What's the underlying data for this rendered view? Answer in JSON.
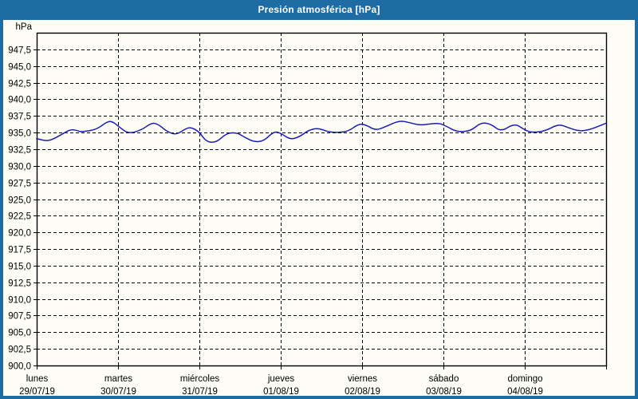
{
  "window": {
    "title": "Presión atmosférica [hPa]"
  },
  "colors": {
    "titlebar": "#1e6ca3",
    "frame": "#000000",
    "gridline": "#000000",
    "line": "#1c1cb4",
    "background": "#fdfdf6"
  },
  "chart_data": {
    "type": "line",
    "title": "Presión atmosférica [hPa]",
    "ylabel": "hPa",
    "y_unit_label": "hPa",
    "ylim": [
      900,
      950
    ],
    "y_tick_step": 2.5,
    "grid": "dashed",
    "legend": "none",
    "y_ticks": [
      {
        "v": 947.5,
        "label": "947,5"
      },
      {
        "v": 945.0,
        "label": "945,0"
      },
      {
        "v": 942.5,
        "label": "942,5"
      },
      {
        "v": 940.0,
        "label": "940,0"
      },
      {
        "v": 937.5,
        "label": "937,5"
      },
      {
        "v": 935.0,
        "label": "935,0"
      },
      {
        "v": 932.5,
        "label": "932,5"
      },
      {
        "v": 930.0,
        "label": "930,0"
      },
      {
        "v": 927.5,
        "label": "927,5"
      },
      {
        "v": 925.0,
        "label": "925,0"
      },
      {
        "v": 922.5,
        "label": "922,5"
      },
      {
        "v": 920.0,
        "label": "920,0"
      },
      {
        "v": 917.5,
        "label": "917,5"
      },
      {
        "v": 915.0,
        "label": "915,0"
      },
      {
        "v": 912.5,
        "label": "912,5"
      },
      {
        "v": 910.0,
        "label": "910,0"
      },
      {
        "v": 907.5,
        "label": "907,5"
      },
      {
        "v": 905.0,
        "label": "905,0"
      },
      {
        "v": 902.5,
        "label": "902,5"
      },
      {
        "v": 900.0,
        "label": "900,0"
      }
    ],
    "days": [
      {
        "name": "lunes",
        "date": "29/07/19"
      },
      {
        "name": "martes",
        "date": "30/07/19"
      },
      {
        "name": "miércoles",
        "date": "31/07/19"
      },
      {
        "name": "jueves",
        "date": "01/08/19"
      },
      {
        "name": "viernes",
        "date": "02/08/19"
      },
      {
        "name": "sábado",
        "date": "03/08/19"
      },
      {
        "name": "domingo",
        "date": "04/08/19"
      }
    ],
    "x_hours_total": 168,
    "series": [
      {
        "name": "Presión atmosférica",
        "unit": "hPa",
        "points_hour_hpa": [
          [
            0,
            934.1
          ],
          [
            2,
            933.8
          ],
          [
            4,
            933.8
          ],
          [
            7,
            934.6
          ],
          [
            10,
            935.5
          ],
          [
            12,
            935.3
          ],
          [
            13,
            935.1
          ],
          [
            16,
            935.3
          ],
          [
            18,
            935.6
          ],
          [
            21,
            936.7
          ],
          [
            22.5,
            936.6
          ],
          [
            24,
            936.0
          ],
          [
            27,
            934.8
          ],
          [
            31,
            935.4
          ],
          [
            34,
            936.5
          ],
          [
            36,
            936.2
          ],
          [
            38,
            935.3
          ],
          [
            41,
            934.6
          ],
          [
            44,
            935.6
          ],
          [
            45.5,
            935.8
          ],
          [
            48,
            935.1
          ],
          [
            50,
            933.6
          ],
          [
            53,
            933.5
          ],
          [
            56,
            934.9
          ],
          [
            59,
            935.0
          ],
          [
            61,
            934.4
          ],
          [
            64,
            933.6
          ],
          [
            67,
            933.7
          ],
          [
            70,
            935.2
          ],
          [
            72,
            934.9
          ],
          [
            75,
            933.9
          ],
          [
            78,
            934.5
          ],
          [
            80,
            935.3
          ],
          [
            83,
            935.7
          ],
          [
            86,
            935.1
          ],
          [
            89,
            935.0
          ],
          [
            92,
            935.2
          ],
          [
            95,
            936.3
          ],
          [
            97,
            936.2
          ],
          [
            100,
            935.3
          ],
          [
            103,
            935.9
          ],
          [
            107,
            936.8
          ],
          [
            110,
            936.5
          ],
          [
            113,
            936.1
          ],
          [
            116,
            936.3
          ],
          [
            119,
            936.4
          ],
          [
            121,
            935.9
          ],
          [
            124,
            935.1
          ],
          [
            128,
            935.2
          ],
          [
            131,
            936.5
          ],
          [
            134,
            936.3
          ],
          [
            137,
            935.1
          ],
          [
            141,
            936.4
          ],
          [
            144,
            935.4
          ],
          [
            146,
            935.0
          ],
          [
            150,
            935.2
          ],
          [
            154,
            936.3
          ],
          [
            157,
            935.7
          ],
          [
            160,
            935.2
          ],
          [
            163,
            935.4
          ],
          [
            166,
            936.0
          ],
          [
            168,
            936.4
          ]
        ]
      }
    ]
  }
}
